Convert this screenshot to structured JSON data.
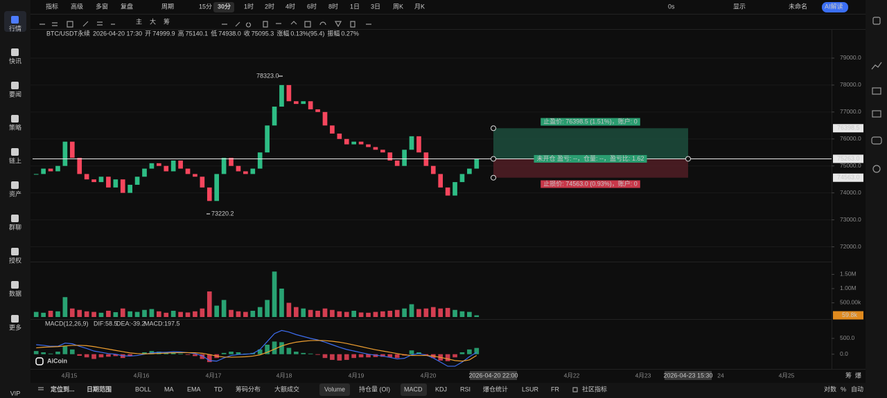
{
  "toolbar": {
    "left": [
      "指标",
      "高级",
      "多窗",
      "复盘",
      "周期"
    ],
    "periods": [
      "15分",
      "30分",
      "1时",
      "2时",
      "4时",
      "6时",
      "8时",
      "1日",
      "3日",
      "周K",
      "月K"
    ],
    "right": [
      "0s",
      "显示",
      "未命名",
      "AI解读"
    ]
  },
  "sidebar": [
    "行情",
    "快讯",
    "要闻",
    "策略",
    "链上",
    "资产",
    "群聊",
    "授权",
    "数据",
    "更多",
    "VIP"
  ],
  "draw_tools": [
    "主",
    "大",
    "筹"
  ],
  "info": {
    "symbol": "BTC/USDT永续",
    "time": "2026-04-20 17:30",
    "fields": [
      {
        "label": "开",
        "value": "74999.9"
      },
      {
        "label": "高",
        "value": "75140.1"
      },
      {
        "label": "低",
        "value": "74938.0"
      },
      {
        "label": "收",
        "value": "75095.3"
      },
      {
        "label": "涨幅",
        "value": "0.13%(95.4)"
      },
      {
        "label": "振幅",
        "value": "0.27%"
      }
    ]
  },
  "logo": "AiCoin",
  "x_axis": {
    "labels": [
      "4月15",
      "4月16",
      "4月17",
      "4月18",
      "4月19",
      "4月20",
      "4月22",
      "4月23",
      "24",
      "4月25"
    ],
    "cursor_labels": [
      "2026-04-20 22:00",
      "2026-04-23 15:30"
    ]
  },
  "side_labels": [
    "筹",
    "爆"
  ],
  "bottom_bar": {
    "left": [
      "定位到...",
      "日期范围"
    ],
    "indicators": [
      "BOLL",
      "MA",
      "EMA",
      "TD",
      "筹码分布",
      "大额成交",
      "Volume",
      "持仓量 (OI)",
      "MACD",
      "KDJ",
      "RSI",
      "爆仓统计",
      "LSUR",
      "FR",
      "社区指标"
    ],
    "right": [
      "对数",
      "%",
      "自动"
    ]
  },
  "chart_data": [
    {
      "type": "candlestick",
      "up_color": "#2ebd85",
      "down_color": "#f6465d",
      "grid": true,
      "ylim": [
        71500,
        80000
      ],
      "yticks": [
        {
          "value": 72000,
          "label": "72000.0"
        },
        {
          "value": 73000,
          "label": "73000.0"
        },
        {
          "value": 74000,
          "label": "74000.0"
        },
        {
          "value": 75000,
          "label": "75000.0"
        },
        {
          "value": 76000,
          "label": "76000.0"
        },
        {
          "value": 77000,
          "label": "77000.0"
        },
        {
          "value": 78000,
          "label": "78000.0"
        },
        {
          "value": 79000,
          "label": "79000.0"
        }
      ],
      "close": [
        74700,
        74900,
        74800,
        75000,
        75900,
        75300,
        74700,
        74500,
        74400,
        74600,
        74200,
        74500,
        74000,
        74300,
        74600,
        74900,
        75100,
        75000,
        74800,
        75200,
        74900,
        74700,
        74600,
        74200,
        73700,
        74700,
        75300,
        75000,
        74800,
        74700,
        74900,
        75500,
        76500,
        77200,
        78000,
        77400,
        77300,
        77400,
        77100,
        77000,
        76500,
        76200,
        76000,
        75800,
        75900,
        75800,
        75700,
        75600,
        75500,
        75200,
        75000,
        75600,
        76100,
        75500,
        75000,
        74700,
        74200,
        73900,
        74400,
        74700,
        74900,
        75263
      ],
      "annotations": {
        "high": "78323.0",
        "low": "73220.2"
      },
      "position": {
        "take_profit": 76398.5,
        "entry": {
          "value": 75263,
          "label": "75263.0"
        },
        "stop_loss": {
          "value": 74563,
          "label": "74563.0"
        },
        "tp_text": "止盈价: 76398.5 (1.51%)，账户: 0",
        "entry_text": "未开仓 盈亏: --，仓量: --，盈亏比: 1.62",
        "sl_text": "止损价: 74563.0 (0.93%)，账户: 0"
      }
    },
    {
      "type": "bar",
      "name": "Volume",
      "ylim": [
        0,
        1900000
      ],
      "yticks": [
        {
          "value": 500000,
          "label": "500.00k"
        },
        {
          "value": 1000000,
          "label": "1.00M"
        },
        {
          "value": 1500000,
          "label": "1.50M"
        }
      ],
      "values": [
        180000,
        150000,
        220000,
        200000,
        700000,
        300000,
        250000,
        200000,
        180000,
        150000,
        220000,
        170000,
        300000,
        200000,
        180000,
        250000,
        280000,
        200000,
        150000,
        220000,
        180000,
        160000,
        200000,
        300000,
        900000,
        400000,
        600000,
        250000,
        200000,
        180000,
        220000,
        350000,
        600000,
        1600000,
        1000000,
        500000,
        350000,
        300000,
        250000,
        220000,
        300000,
        250000,
        200000,
        180000,
        220000,
        160000,
        150000,
        180000,
        200000,
        220000,
        250000,
        300000,
        450000,
        280000,
        300000,
        350000,
        300000,
        320000,
        250000,
        200000,
        180000,
        59800
      ],
      "current": {
        "value": 59800,
        "label": "59.8k"
      }
    },
    {
      "type": "macd",
      "title": "MACD(12,26,9)",
      "legend": [
        "DIF:58.5",
        "DEA:-39.2",
        "MACD:197.5"
      ],
      "ylim": [
        -400,
        1000
      ],
      "yticks": [
        {
          "value": 0,
          "label": "0.0"
        },
        {
          "value": 500,
          "label": "500.0"
        }
      ],
      "histogram": [
        100,
        60,
        20,
        80,
        250,
        150,
        -50,
        -100,
        -150,
        -100,
        -80,
        -60,
        -120,
        -60,
        0,
        60,
        100,
        80,
        40,
        60,
        20,
        -20,
        -60,
        -150,
        -250,
        -120,
        40,
        80,
        60,
        20,
        40,
        150,
        300,
        400,
        380,
        200,
        80,
        40,
        20,
        -20,
        -120,
        -180,
        -200,
        -180,
        -120,
        -100,
        -100,
        -90,
        -80,
        -100,
        -120,
        -40,
        120,
        60,
        -40,
        -120,
        -200,
        -220,
        -100,
        60,
        150,
        197.5
      ],
      "series": [
        {
          "name": "DIF",
          "color": "#3d6df0",
          "values": [
            300,
            280,
            250,
            250,
            350,
            330,
            250,
            180,
            100,
            60,
            20,
            0,
            -50,
            -60,
            -40,
            0,
            40,
            60,
            60,
            80,
            70,
            50,
            20,
            -50,
            -200,
            -220,
            -120,
            -40,
            -10,
            0,
            20,
            150,
            400,
            650,
            750,
            700,
            620,
            560,
            500,
            450,
            380,
            300,
            220,
            150,
            100,
            50,
            0,
            -30,
            -60,
            -100,
            -150,
            -130,
            -20,
            20,
            -30,
            -120,
            -250,
            -380,
            -380,
            -250,
            -80,
            58.5
          ]
        },
        {
          "name": "DEA",
          "color": "#f0a030",
          "values": [
            200,
            220,
            230,
            240,
            260,
            280,
            280,
            270,
            240,
            200,
            160,
            120,
            80,
            40,
            20,
            10,
            15,
            25,
            35,
            45,
            50,
            50,
            45,
            30,
            -10,
            -60,
            -90,
            -95,
            -90,
            -80,
            -60,
            -20,
            60,
            160,
            260,
            330,
            380,
            410,
            430,
            435,
            430,
            410,
            380,
            340,
            290,
            240,
            190,
            140,
            100,
            60,
            20,
            -20,
            -40,
            -40,
            -40,
            -60,
            -100,
            -150,
            -200,
            -220,
            -180,
            -39.2
          ]
        }
      ]
    }
  ]
}
